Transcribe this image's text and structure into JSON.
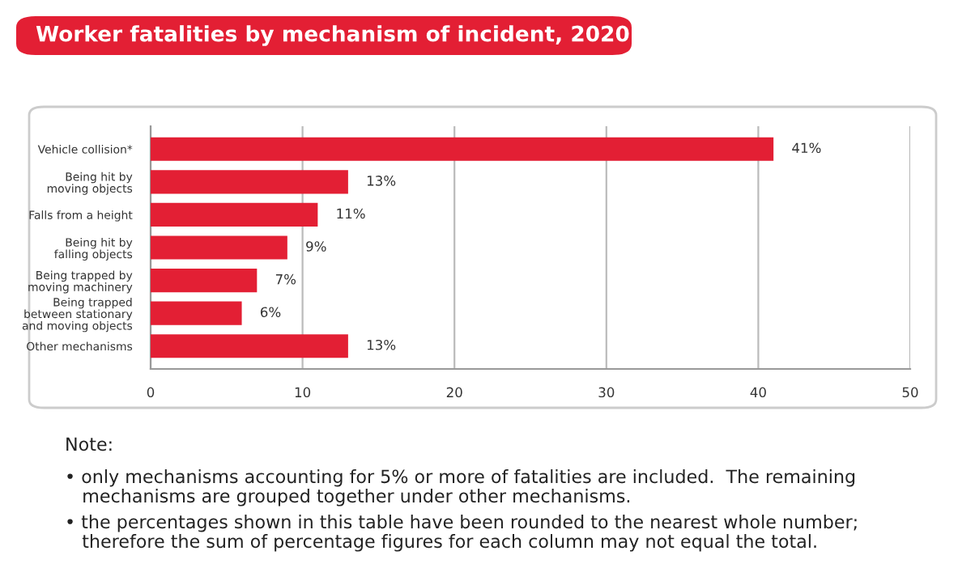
{
  "chart_data": {
    "type": "bar",
    "orientation": "horizontal",
    "title": "Worker fatalities by mechanism of incident, 2020",
    "categories": [
      "Vehicle collision*",
      "Being hit by\nmoving objects",
      "Falls from a height",
      "Being hit by\nfalling objects",
      "Being trapped by\nmoving machinery",
      "Being trapped\nbetween stationary\nand moving objects",
      "Other mechanisms"
    ],
    "values": [
      41,
      13,
      11,
      9,
      7,
      6,
      13
    ],
    "value_labels": [
      "41%",
      "13%",
      "11%",
      "9%",
      "7%",
      "6%",
      "13%"
    ],
    "color": "#e31f34",
    "xlim": [
      0,
      50
    ],
    "xticks": [
      0,
      10,
      20,
      30,
      40,
      50
    ],
    "grid": "x",
    "annotations": [
      "Note:",
      "• only mechanisms accounting for 5% or more of fatalities are included.  The remaining\n   mechanisms are grouped together under other mechanisms.",
      "• the percentages shown in this table have been rounded to the nearest whole number;\n   therefore the sum of percentage figures for each column may not equal the total."
    ]
  }
}
